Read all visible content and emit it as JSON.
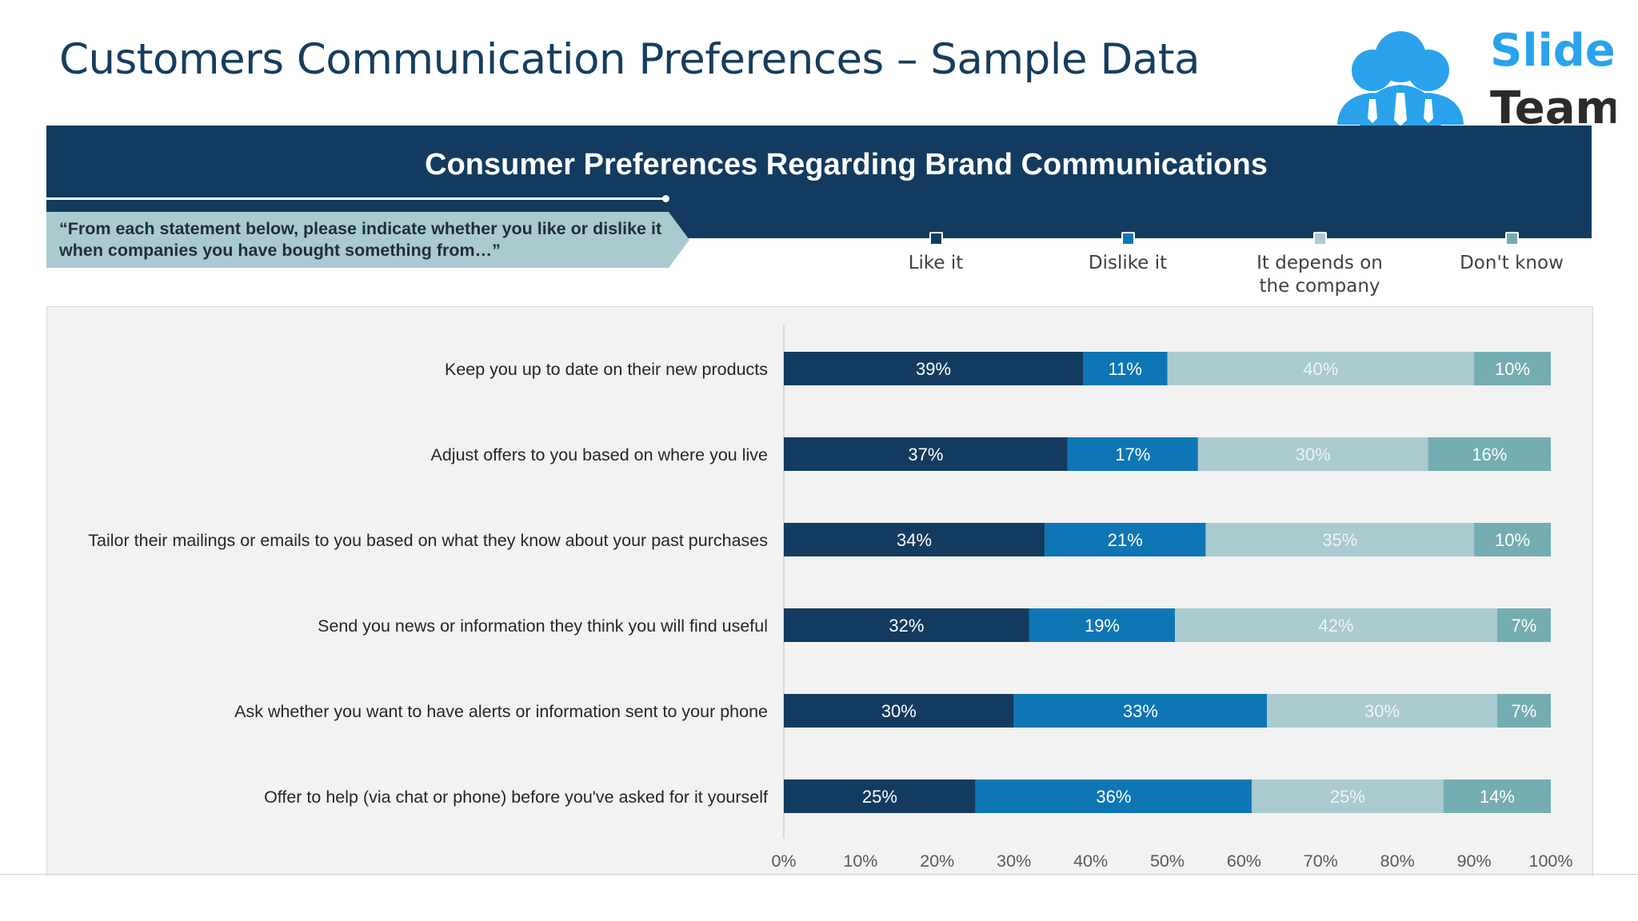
{
  "slide": {
    "title": "Customers Communication Preferences – Sample Data"
  },
  "logo": {
    "word1": "Slide",
    "word2": "Team"
  },
  "banner": {
    "title": "Consumer Preferences Regarding Brand Communications"
  },
  "question": {
    "text": "“From each statement below, please indicate whether you like or dislike it when companies you have bought something from…”"
  },
  "legend": [
    {
      "label": "Like it",
      "color": "#133b5f"
    },
    {
      "label": "Dislike it",
      "color": "#0f76b5"
    },
    {
      "label": "It depends on\nthe company",
      "color": "#a9cbcf"
    },
    {
      "label": "Don't know",
      "color": "#74adb1"
    }
  ],
  "chart_data": {
    "type": "bar",
    "orientation": "horizontal",
    "stacked": true,
    "categories": [
      "Keep you up to date on their new products",
      "Adjust offers to you based on where you live",
      "Tailor their mailings or emails to you based on what they know about your past purchases",
      "Send you news or information they think you will find useful",
      "Ask whether you want to have alerts or information sent to your phone",
      "Offer to help (via chat or phone) before you've asked for it yourself"
    ],
    "series": [
      {
        "name": "Like it",
        "color": "#133b5f",
        "label_color": "#ffffff",
        "values": [
          39,
          37,
          34,
          32,
          30,
          25
        ]
      },
      {
        "name": "Dislike it",
        "color": "#0f76b5",
        "label_color": "#ffffff",
        "values": [
          11,
          17,
          21,
          19,
          33,
          36
        ]
      },
      {
        "name": "It depends on the company",
        "color": "#a9cbcf",
        "label_color": "#eef5f6",
        "values": [
          40,
          30,
          35,
          42,
          30,
          25
        ]
      },
      {
        "name": "Don't know",
        "color": "#74adb1",
        "label_color": "#ffffff",
        "values": [
          10,
          16,
          10,
          7,
          7,
          14
        ]
      }
    ],
    "value_suffix": "%",
    "xlim": [
      0,
      100
    ],
    "xticks": [
      "0%",
      "10%",
      "20%",
      "30%",
      "40%",
      "50%",
      "60%",
      "70%",
      "80%",
      "90%",
      "100%"
    ],
    "grid": false,
    "legend_position": "top-right"
  }
}
